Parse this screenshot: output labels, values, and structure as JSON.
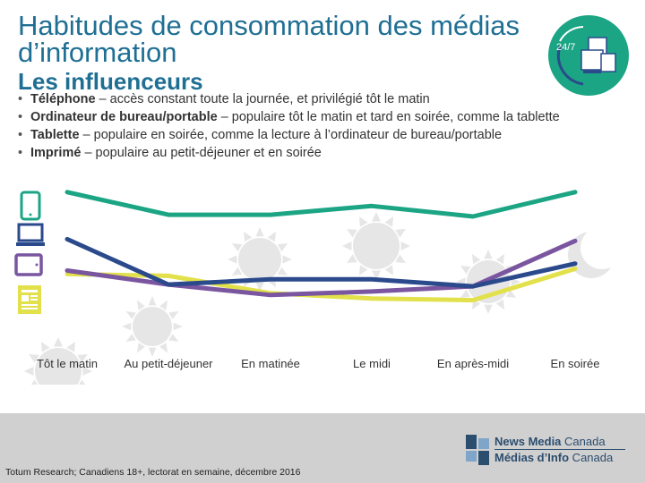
{
  "title": "Habitudes de consommation des médias d’information",
  "subtitle": "Les influenceurs",
  "bullets": [
    {
      "bold": "Téléphone",
      "rest": " – accès constant toute la journée, et privilégié tôt le matin"
    },
    {
      "bold": "Ordinateur de bureau/portable",
      "rest": " – populaire tôt le matin et tard en soirée, comme la tablette"
    },
    {
      "bold": "Tablette",
      "rest": " – populaire en soirée, comme la lecture à l’ordinateur de bureau/portable"
    },
    {
      "bold": "Imprimé",
      "rest": " – populaire au petit-déjeuner et en soirée"
    }
  ],
  "badge_text": "24/7",
  "source": "Totum Research; Canadiens 18+, lectorat en semaine, décembre 2016",
  "logo": {
    "line1_bold": "News Media",
    "line1_rest": " Canada",
    "line2_bold": "Médias d’Info",
    "line2_rest": " Canada"
  },
  "colors": {
    "phone": "#1ba584",
    "desktop": "#2b4a8c",
    "tablet": "#7a55a0",
    "print": "#e2e14c",
    "title": "#1f6f94",
    "footer": "#d0d0d0"
  },
  "chart_data": {
    "type": "line",
    "categories": [
      "Tôt le matin",
      "Au petit-déjeuner",
      "En matinée",
      "Le midi",
      "En après-midi",
      "En soirée"
    ],
    "ylim": [
      0,
      100
    ],
    "series": [
      {
        "icon": "smartphone-icon",
        "color": "#1ba584",
        "values": [
          95,
          82,
          82,
          87,
          81,
          95
        ]
      },
      {
        "icon": "laptop-icon",
        "color": "#2b4a8c",
        "values": [
          68,
          42,
          45,
          45,
          41,
          54
        ]
      },
      {
        "icon": "tablet-icon",
        "color": "#7a55a0",
        "values": [
          50,
          42,
          36,
          38,
          41,
          67
        ]
      },
      {
        "icon": "newspaper-icon",
        "color": "#e2e14c",
        "values": [
          48,
          47,
          37,
          34,
          33,
          51
        ]
      }
    ]
  }
}
